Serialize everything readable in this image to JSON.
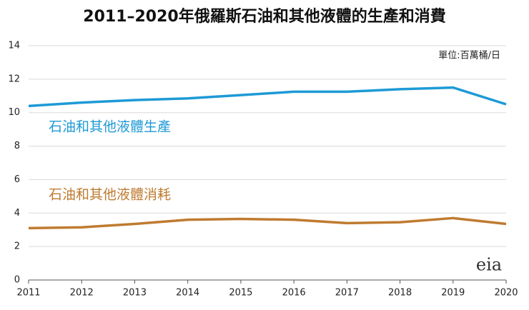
{
  "chart_data": {
    "type": "line",
    "title": "2011–2020年俄羅斯石油和其他液體的生產和消費",
    "unit_label": "單位:百萬桶/日",
    "logo": "eia",
    "x": [
      2011,
      2012,
      2013,
      2014,
      2015,
      2016,
      2017,
      2018,
      2019,
      2020
    ],
    "xlim": [
      2011,
      2020
    ],
    "xticks": [
      2011,
      2012,
      2013,
      2014,
      2015,
      2016,
      2017,
      2018,
      2019,
      2020
    ],
    "ylim": [
      0,
      14
    ],
    "yticks": [
      0,
      2,
      4,
      6,
      8,
      10,
      12,
      14
    ],
    "grid": true,
    "series": [
      {
        "name": "石油和其他液體生產",
        "color": "#1e9ad6",
        "values": [
          10.4,
          10.6,
          10.75,
          10.85,
          11.05,
          11.25,
          11.25,
          11.4,
          11.5,
          10.5
        ]
      },
      {
        "name": "石油和其他液體消耗",
        "color": "#bf7b30",
        "values": [
          3.1,
          3.15,
          3.35,
          3.6,
          3.65,
          3.6,
          3.4,
          3.45,
          3.7,
          3.35
        ]
      }
    ]
  }
}
